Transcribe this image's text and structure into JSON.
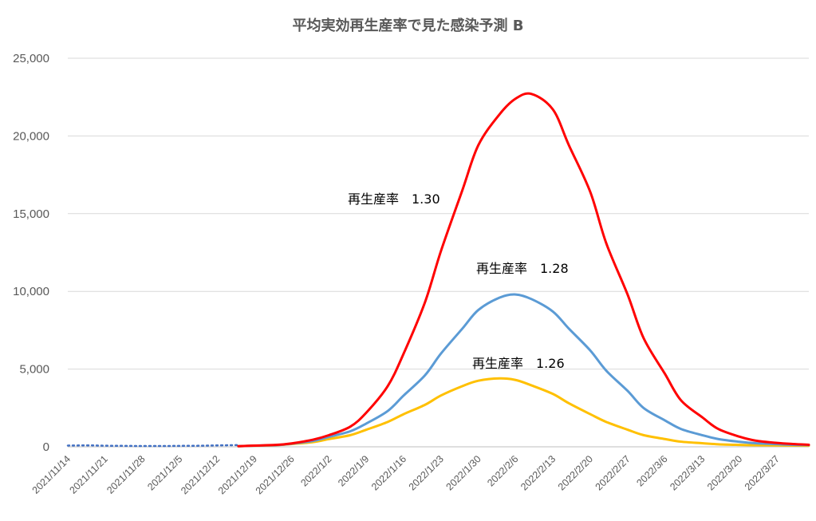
{
  "chart_data": {
    "type": "line",
    "title": "平均実効再生産率で見た感染予測 B",
    "xlabel": "",
    "ylabel": "",
    "x_start": "2021/11/14",
    "x_end": "2022/4/2",
    "ylim": [
      0,
      25000
    ],
    "y_ticks": [
      0,
      5000,
      10000,
      15000,
      20000,
      25000
    ],
    "y_tick_labels": [
      "0",
      "5,000",
      "10,000",
      "15,000",
      "20,000",
      "25,000"
    ],
    "x_tick_labels": [
      "2021/11/14",
      "2021/11/21",
      "2021/11/28",
      "2021/12/5",
      "2021/12/12",
      "2021/12/19",
      "2021/12/26",
      "2022/1/2",
      "2022/1/9",
      "2022/1/16",
      "2022/1/23",
      "2022/1/30",
      "2022/2/6",
      "2022/2/13",
      "2022/2/20",
      "2022/2/27",
      "2022/3/6",
      "2022/3/13",
      "2022/3/20",
      "2022/3/27"
    ],
    "grid": "horizontal",
    "legend": "none",
    "series": [
      {
        "name": "再生産率　1.30",
        "color": "#ff0000",
        "points": [
          [
            "2021/12/16",
            40
          ],
          [
            "2021/12/19",
            80
          ],
          [
            "2021/12/23",
            120
          ],
          [
            "2021/12/26",
            220
          ],
          [
            "2021/12/30",
            460
          ],
          [
            "2022/1/2",
            750
          ],
          [
            "2022/1/6",
            1300
          ],
          [
            "2022/1/9",
            2200
          ],
          [
            "2022/1/13",
            3900
          ],
          [
            "2022/1/16",
            6000
          ],
          [
            "2022/1/20",
            9300
          ],
          [
            "2022/1/23",
            12600
          ],
          [
            "2022/1/27",
            16500
          ],
          [
            "2022/1/30",
            19400
          ],
          [
            "2022/2/3",
            21400
          ],
          [
            "2022/2/6",
            22400
          ],
          [
            "2022/2/9",
            22700
          ],
          [
            "2022/2/13",
            21700
          ],
          [
            "2022/2/16",
            19400
          ],
          [
            "2022/2/20",
            16400
          ],
          [
            "2022/2/23",
            13100
          ],
          [
            "2022/2/27",
            9800
          ],
          [
            "2022/3/2",
            7000
          ],
          [
            "2022/3/6",
            4700
          ],
          [
            "2022/3/9",
            3000
          ],
          [
            "2022/3/13",
            1900
          ],
          [
            "2022/3/16",
            1150
          ],
          [
            "2022/3/20",
            650
          ],
          [
            "2022/3/23",
            400
          ],
          [
            "2022/3/27",
            250
          ],
          [
            "2022/3/30",
            180
          ],
          [
            "2022/4/2",
            130
          ]
        ]
      },
      {
        "name": "再生産率　1.28",
        "color": "#5b9bd5",
        "points": [
          [
            "2021/12/16",
            40
          ],
          [
            "2021/12/19",
            70
          ],
          [
            "2021/12/23",
            110
          ],
          [
            "2021/12/26",
            200
          ],
          [
            "2021/12/30",
            380
          ],
          [
            "2022/1/2",
            640
          ],
          [
            "2022/1/6",
            1000
          ],
          [
            "2022/1/9",
            1500
          ],
          [
            "2022/1/13",
            2300
          ],
          [
            "2022/1/16",
            3300
          ],
          [
            "2022/1/20",
            4600
          ],
          [
            "2022/1/23",
            6000
          ],
          [
            "2022/1/27",
            7600
          ],
          [
            "2022/1/30",
            8800
          ],
          [
            "2022/2/3",
            9600
          ],
          [
            "2022/2/6",
            9800
          ],
          [
            "2022/2/9",
            9500
          ],
          [
            "2022/2/13",
            8700
          ],
          [
            "2022/2/16",
            7600
          ],
          [
            "2022/2/20",
            6200
          ],
          [
            "2022/2/23",
            4900
          ],
          [
            "2022/2/27",
            3600
          ],
          [
            "2022/3/2",
            2500
          ],
          [
            "2022/3/6",
            1700
          ],
          [
            "2022/3/9",
            1150
          ],
          [
            "2022/3/13",
            750
          ],
          [
            "2022/3/16",
            500
          ],
          [
            "2022/3/20",
            320
          ],
          [
            "2022/3/23",
            230
          ],
          [
            "2022/3/27",
            170
          ],
          [
            "2022/3/30",
            130
          ],
          [
            "2022/4/2",
            110
          ]
        ]
      },
      {
        "name": "再生産率　1.26",
        "color": "#ffc000",
        "points": [
          [
            "2021/12/16",
            40
          ],
          [
            "2021/12/19",
            70
          ],
          [
            "2021/12/23",
            100
          ],
          [
            "2021/12/26",
            180
          ],
          [
            "2021/12/30",
            300
          ],
          [
            "2022/1/2",
            500
          ],
          [
            "2022/1/6",
            750
          ],
          [
            "2022/1/9",
            1100
          ],
          [
            "2022/1/13",
            1600
          ],
          [
            "2022/1/16",
            2100
          ],
          [
            "2022/1/20",
            2700
          ],
          [
            "2022/1/23",
            3300
          ],
          [
            "2022/1/27",
            3900
          ],
          [
            "2022/1/30",
            4250
          ],
          [
            "2022/2/3",
            4400
          ],
          [
            "2022/2/6",
            4300
          ],
          [
            "2022/2/9",
            3950
          ],
          [
            "2022/2/13",
            3400
          ],
          [
            "2022/2/16",
            2800
          ],
          [
            "2022/2/20",
            2100
          ],
          [
            "2022/2/23",
            1600
          ],
          [
            "2022/2/27",
            1100
          ],
          [
            "2022/3/2",
            750
          ],
          [
            "2022/3/6",
            500
          ],
          [
            "2022/3/9",
            330
          ],
          [
            "2022/3/13",
            230
          ],
          [
            "2022/3/16",
            160
          ],
          [
            "2022/3/20",
            120
          ],
          [
            "2022/3/23",
            100
          ],
          [
            "2022/3/27",
            90
          ],
          [
            "2022/3/30",
            80
          ],
          [
            "2022/4/2",
            70
          ]
        ]
      },
      {
        "name": "",
        "color": "#4472c4",
        "style": "dotted",
        "points": [
          [
            "2021/11/14",
            80
          ],
          [
            "2021/11/18",
            90
          ],
          [
            "2021/11/21",
            70
          ],
          [
            "2021/11/25",
            60
          ],
          [
            "2021/11/28",
            50
          ],
          [
            "2021/12/2",
            50
          ],
          [
            "2021/12/5",
            60
          ],
          [
            "2021/12/9",
            70
          ],
          [
            "2021/12/12",
            90
          ],
          [
            "2021/12/16",
            110
          ]
        ]
      }
    ]
  }
}
